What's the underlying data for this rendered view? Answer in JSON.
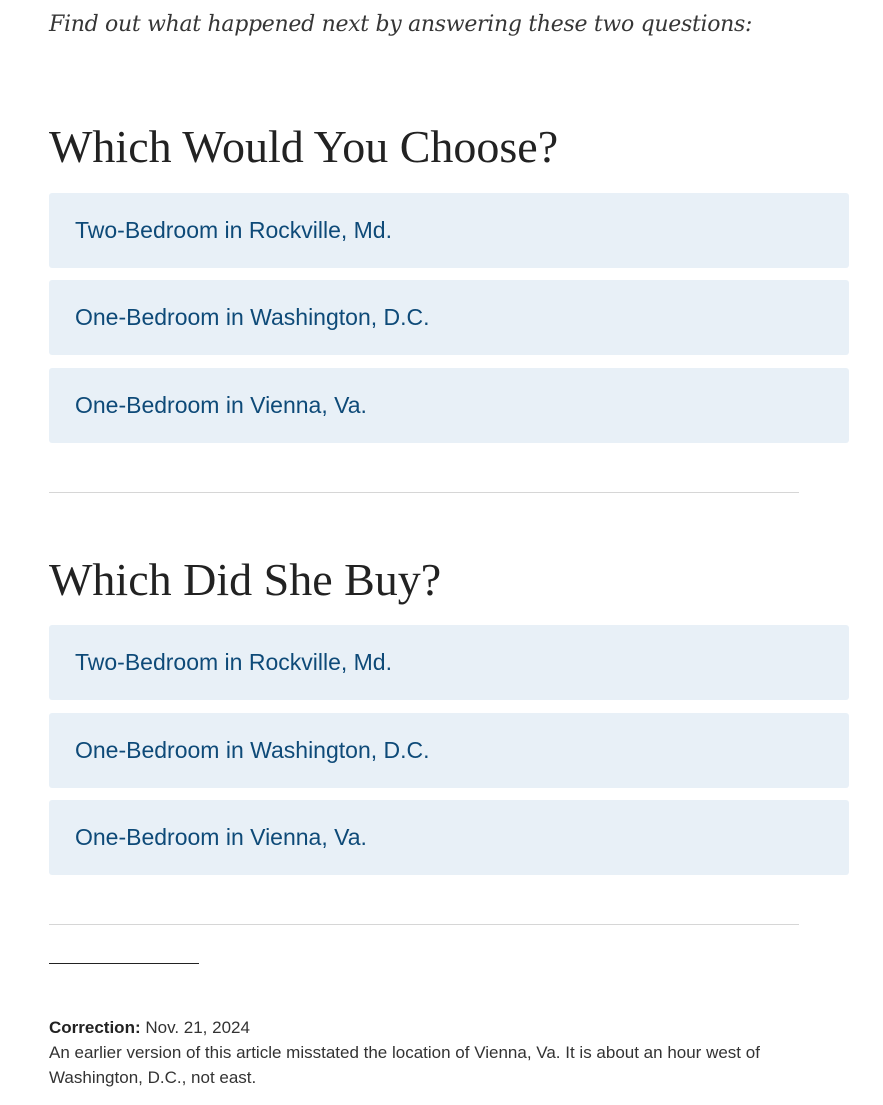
{
  "intro": "Find out what happened next by answering these two questions:",
  "quizzes": [
    {
      "heading": "Which Would You Choose?",
      "options": [
        "Two-Bedroom in Rockville, Md.",
        "One-Bedroom in Washington, D.C.",
        "One-Bedroom in Vienna, Va."
      ]
    },
    {
      "heading": "Which Did She Buy?",
      "options": [
        "Two-Bedroom in Rockville, Md.",
        "One-Bedroom in Washington, D.C.",
        "One-Bedroom in Vienna, Va."
      ]
    }
  ],
  "correction": {
    "label": "Correction:",
    "date": "Nov. 21, 2024",
    "text": "An earlier version of this article misstated the location of Vienna, Va. It is about an hour west of Washington, D.C., not east."
  }
}
